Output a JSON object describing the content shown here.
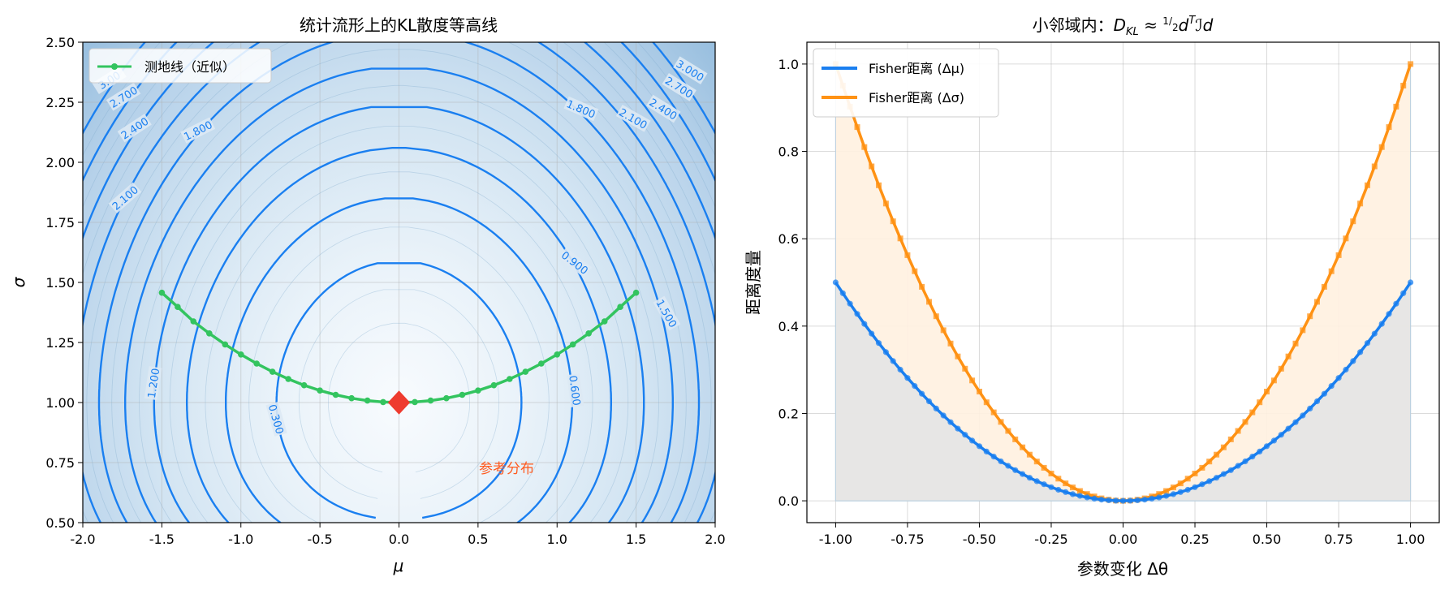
{
  "chart_data": [
    {
      "type": "contour",
      "title": "统计流形上的KL散度等高线",
      "xlabel": "μ",
      "ylabel": "σ",
      "xlim": [
        -2.0,
        2.0
      ],
      "ylim": [
        0.5,
        2.5
      ],
      "xticks": [
        "-2.0",
        "-1.5",
        "-1.0",
        "-0.5",
        "0.0",
        "0.5",
        "1.0",
        "1.5",
        "2.0"
      ],
      "yticks": [
        "0.50",
        "0.75",
        "1.00",
        "1.25",
        "1.50",
        "1.75",
        "2.00",
        "2.25",
        "2.50"
      ],
      "grid": true,
      "reference": {
        "mu": 0.0,
        "sigma": 1.0
      },
      "reference_label": "参考分布",
      "contour_levels": [
        0.3,
        0.6,
        0.9,
        1.2,
        1.5,
        1.8,
        2.1,
        2.4,
        2.7,
        3.0
      ],
      "contour_labels": [
        {
          "text": "0.300",
          "mu": -0.78,
          "sigma": 0.93
        },
        {
          "text": "0.600",
          "mu": 1.11,
          "sigma": 1.05
        },
        {
          "text": "0.900",
          "mu": 1.11,
          "sigma": 1.58
        },
        {
          "text": "1.200",
          "mu": -1.55,
          "sigma": 1.08
        },
        {
          "text": "1.500",
          "mu": 1.69,
          "sigma": 1.37
        },
        {
          "text": "1.800",
          "mu": 1.15,
          "sigma": 2.22
        },
        {
          "text": "1.800",
          "mu": -1.27,
          "sigma": 2.13
        },
        {
          "text": "2.100",
          "mu": 1.48,
          "sigma": 2.18
        },
        {
          "text": "2.100",
          "mu": -1.73,
          "sigma": 1.85
        },
        {
          "text": "2.400",
          "mu": 1.67,
          "sigma": 2.22
        },
        {
          "text": "2.400",
          "mu": -1.67,
          "sigma": 2.14
        },
        {
          "text": "2.700",
          "mu": 1.77,
          "sigma": 2.31
        },
        {
          "text": "2.700",
          "mu": -1.74,
          "sigma": 2.27
        },
        {
          "text": "3.000",
          "mu": 1.84,
          "sigma": 2.38
        },
        {
          "text": "3.00",
          "mu": -1.83,
          "sigma": 2.34
        }
      ],
      "series": [
        {
          "name": "测地线（近似）",
          "color": "#33c45f",
          "mu": [
            -1.5,
            -1.4,
            -1.3,
            -1.2,
            -1.1,
            -1.0,
            -0.9,
            -0.8,
            -0.7,
            -0.6,
            -0.5,
            -0.4,
            -0.3,
            -0.2,
            -0.1,
            0.0,
            0.1,
            0.2,
            0.3,
            0.4,
            0.5,
            0.6,
            0.7,
            0.8,
            0.9,
            1.0,
            1.1,
            1.2,
            1.3,
            1.4,
            1.5
          ],
          "sigma": [
            1.457,
            1.398,
            1.338,
            1.288,
            1.242,
            1.2,
            1.162,
            1.128,
            1.098,
            1.072,
            1.05,
            1.032,
            1.018,
            1.008,
            1.002,
            1.0,
            1.002,
            1.008,
            1.018,
            1.032,
            1.05,
            1.072,
            1.098,
            1.128,
            1.162,
            1.2,
            1.242,
            1.288,
            1.338,
            1.398,
            1.457
          ]
        }
      ],
      "legend": "top-left"
    },
    {
      "type": "line",
      "title": "小邻域内：D_KL ≈ ½ dᵀℐd",
      "title_parts": {
        "prefix": "小邻域内：",
        "sub": "KL",
        "frac_num": "1",
        "frac_den": "2",
        "sup": "T",
        "tail": "ℐd"
      },
      "xlabel": "参数变化 Δθ",
      "ylabel": "距离度量",
      "xlim": [
        -1.1,
        1.1
      ],
      "ylim": [
        -0.05,
        1.05
      ],
      "xticks": [
        "-1.00",
        "-0.75",
        "-0.50",
        "-0.25",
        "0.00",
        "0.25",
        "0.50",
        "0.75",
        "1.00"
      ],
      "yticks": [
        "0.0",
        "0.2",
        "0.4",
        "0.6",
        "0.8",
        "1.0"
      ],
      "grid": true,
      "x_range": [
        -1.0,
        1.0
      ],
      "n_points": 81,
      "series": [
        {
          "name": "Fisher距离 (Δμ)",
          "color": "#1a7ff0",
          "marker": "circle",
          "formula": "0.5*x^2",
          "fill": "#e4e4e4"
        },
        {
          "name": "Fisher距离 (Δσ)",
          "color": "#ff9214",
          "marker": "square",
          "formula": "x^2",
          "fill": "#fff1e0"
        }
      ],
      "legend": "top-left"
    }
  ]
}
